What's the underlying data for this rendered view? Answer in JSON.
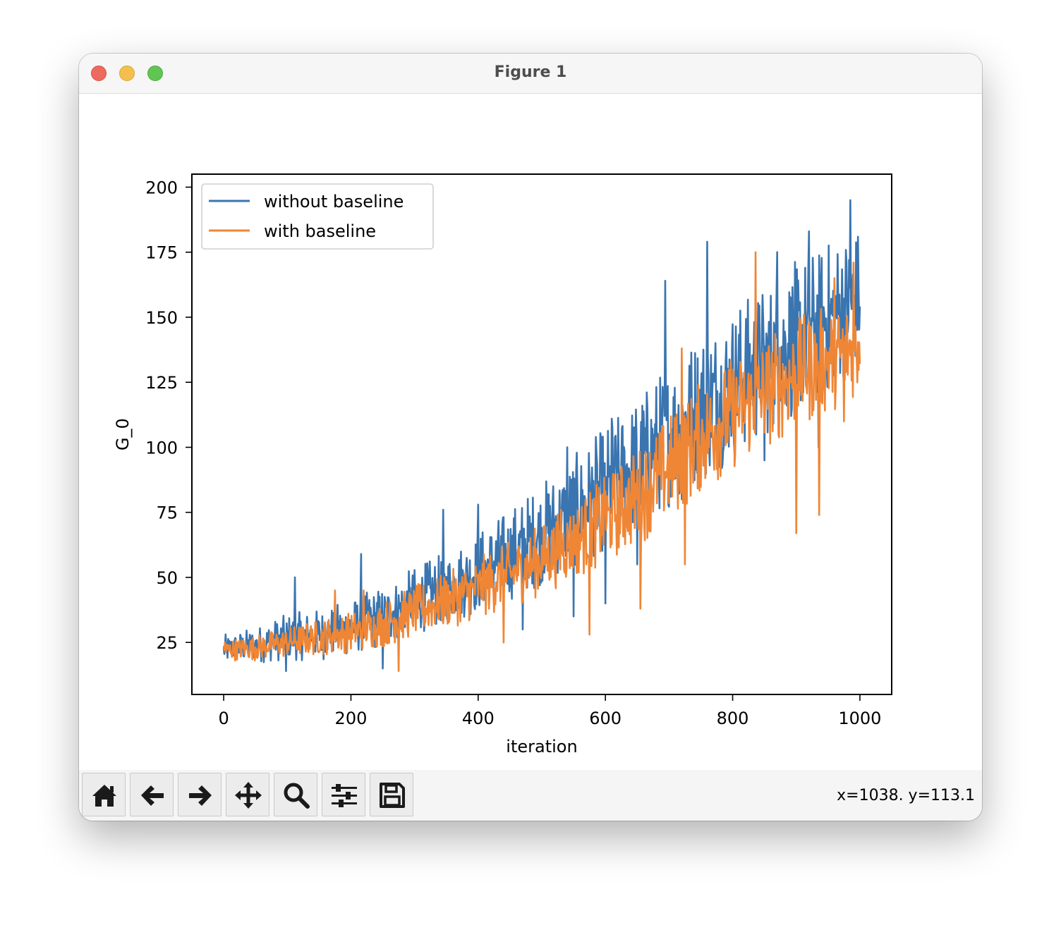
{
  "window": {
    "title": "Figure 1"
  },
  "toolbar": {
    "buttons": [
      {
        "name": "home-button",
        "icon": "home-icon"
      },
      {
        "name": "back-button",
        "icon": "arrow-left-icon"
      },
      {
        "name": "forward-button",
        "icon": "arrow-right-icon"
      },
      {
        "name": "pan-button",
        "icon": "move-icon"
      },
      {
        "name": "zoom-button",
        "icon": "search-icon"
      },
      {
        "name": "configure-subplots-button",
        "icon": "sliders-icon"
      },
      {
        "name": "save-button",
        "icon": "floppy-disk-icon"
      }
    ],
    "coords": "x=1038. y=113.1"
  },
  "chart_data": {
    "type": "line",
    "title": "",
    "xlabel": "iteration",
    "ylabel": "G_0",
    "xlim": [
      -50,
      1050
    ],
    "ylim": [
      5,
      205
    ],
    "xticks": [
      0,
      200,
      400,
      600,
      800,
      1000
    ],
    "yticks": [
      25,
      50,
      75,
      100,
      125,
      150,
      175,
      200
    ],
    "legend_position": "upper-left",
    "grid": false,
    "x": [
      0,
      50,
      100,
      150,
      200,
      250,
      300,
      350,
      400,
      450,
      500,
      550,
      600,
      650,
      700,
      750,
      800,
      850,
      900,
      950,
      1000
    ],
    "series": [
      {
        "name": "without baseline",
        "color": "#3a75b0",
        "values": [
          22,
          24,
          27,
          28,
          31,
          35,
          41,
          46,
          52,
          59,
          67,
          75,
          84,
          94,
          105,
          116,
          125,
          133,
          142,
          150,
          158
        ],
        "spread": [
          6,
          7,
          9,
          10,
          11,
          12,
          13,
          14,
          16,
          18,
          20,
          22,
          24,
          26,
          28,
          30,
          30,
          30,
          30,
          30,
          28
        ],
        "max_points": [
          [
            5,
            25
          ],
          [
            112,
            50
          ],
          [
            216,
            59
          ],
          [
            345,
            76
          ],
          [
            400,
            78
          ],
          [
            540,
            100
          ],
          [
            610,
            111
          ],
          [
            694,
            164
          ],
          [
            760,
            179
          ],
          [
            870,
            175
          ],
          [
            920,
            183
          ],
          [
            985,
            195
          ]
        ],
        "min_points": [
          [
            98,
            14
          ],
          [
            250,
            15
          ],
          [
            470,
            30
          ],
          [
            550,
            35
          ],
          [
            600,
            40
          ],
          [
            650,
            55
          ],
          [
            720,
            80
          ],
          [
            850,
            95
          ],
          [
            900,
            90
          ],
          [
            935,
            100
          ]
        ]
      },
      {
        "name": "with baseline",
        "color": "#ef8636",
        "values": [
          22,
          23,
          25,
          27,
          29,
          32,
          37,
          41,
          46,
          51,
          57,
          64,
          72,
          81,
          92,
          104,
          113,
          121,
          128,
          134,
          140
        ],
        "spread": [
          4,
          5,
          6,
          7,
          8,
          9,
          10,
          11,
          12,
          13,
          14,
          15,
          17,
          19,
          21,
          22,
          22,
          22,
          22,
          21,
          20
        ],
        "max_points": [
          [
            2,
            25
          ],
          [
            175,
            45
          ],
          [
            220,
            45
          ],
          [
            530,
            76
          ],
          [
            600,
            83
          ],
          [
            720,
            138
          ],
          [
            836,
            175
          ],
          [
            960,
            165
          ],
          [
            990,
            171
          ]
        ],
        "min_points": [
          [
            275,
            14
          ],
          [
            440,
            25
          ],
          [
            575,
            28
          ],
          [
            655,
            38
          ],
          [
            725,
            55
          ],
          [
            900,
            67
          ],
          [
            936,
            74
          ],
          [
            975,
            110
          ]
        ]
      }
    ]
  }
}
